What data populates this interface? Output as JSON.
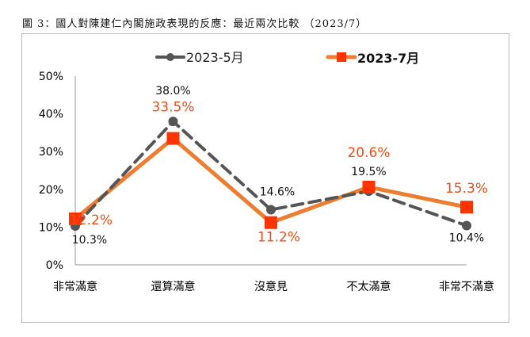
{
  "chart_data": {
    "type": "line",
    "title": "圖 3：國人對陳建仁內閣施政表現的反應：最近兩次比較 （2023/7）",
    "categories": [
      "非常滿意",
      "還算滿意",
      "沒意見",
      "不太滿意",
      "非常不滿意"
    ],
    "ylim": [
      0,
      50
    ],
    "yticks": [
      "0%",
      "10%",
      "20%",
      "30%",
      "40%",
      "50%"
    ],
    "legend_position": "top",
    "series": [
      {
        "name": "2023-5月",
        "values": [
          10.3,
          38.0,
          14.6,
          19.5,
          10.4
        ],
        "labels": [
          "10.3%",
          "38.0%",
          "14.6%",
          "19.5%",
          "10.4%"
        ],
        "color": "#555555",
        "style": "dashed",
        "marker": "circle"
      },
      {
        "name": "2023-7月",
        "values": [
          12.2,
          33.5,
          11.2,
          20.6,
          15.3
        ],
        "labels": [
          "12.2%",
          "33.5%",
          "11.2%",
          "20.6%",
          "15.3%"
        ],
        "color": "#ED7D31",
        "marker_color": "#FF3300",
        "label_color": "#E8501A",
        "style": "solid",
        "marker": "square"
      }
    ]
  }
}
